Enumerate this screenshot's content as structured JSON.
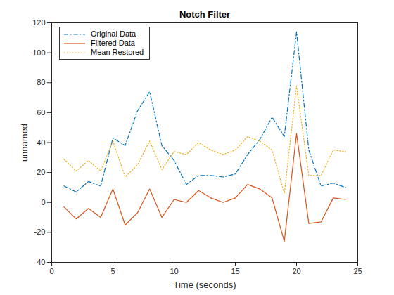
{
  "chart_data": {
    "type": "line",
    "title": "Notch Filter",
    "x_label": "Time (seconds)",
    "y_label": "unnamed",
    "x": [
      1,
      2,
      3,
      4,
      5,
      6,
      7,
      8,
      9,
      10,
      11,
      12,
      13,
      14,
      15,
      16,
      17,
      18,
      19,
      20,
      21,
      22,
      23,
      24
    ],
    "series": [
      {
        "name": "Original Data",
        "color": "#0072BD",
        "line_style": "dashdot",
        "values": [
          11,
          7,
          14,
          11,
          43,
          38,
          61,
          74,
          38,
          28,
          12,
          18,
          18,
          17,
          19,
          32,
          42,
          57,
          44,
          114,
          35,
          11,
          13,
          10
        ]
      },
      {
        "name": "Filtered Data",
        "color": "#D95319",
        "line_style": "solid",
        "values": [
          -3,
          -11,
          -4,
          -10,
          9,
          -15,
          -7,
          9,
          -10,
          2,
          0,
          8,
          3,
          0,
          3,
          12,
          9,
          3,
          -26,
          46,
          -14,
          -13,
          3,
          2
        ]
      },
      {
        "name": "Mean Restored",
        "color": "#EDB120",
        "line_style": "dotted",
        "values": [
          29,
          21,
          28,
          21,
          41,
          17,
          25,
          41,
          22,
          34,
          32,
          40,
          35,
          32,
          35,
          44,
          41,
          35,
          6,
          78,
          18,
          18,
          35,
          34
        ]
      }
    ],
    "xlim": [
      0,
      25
    ],
    "xticks": [
      0,
      5,
      10,
      15,
      20,
      25
    ],
    "ylim": [
      -40,
      120
    ],
    "yticks": [
      -40,
      -20,
      0,
      20,
      40,
      60,
      80,
      100,
      120
    ],
    "grid": false,
    "legend": "upper left"
  }
}
